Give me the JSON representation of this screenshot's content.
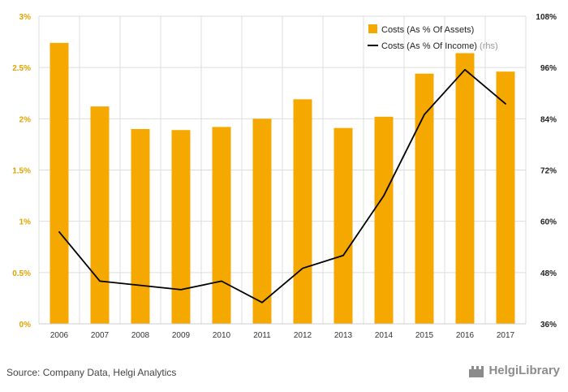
{
  "chart_data": {
    "type": "bar",
    "categories": [
      "2006",
      "2007",
      "2008",
      "2009",
      "2010",
      "2011",
      "2012",
      "2013",
      "2014",
      "2015",
      "2016",
      "2017"
    ],
    "series": [
      {
        "name": "Costs (As % Of Assets)",
        "type": "bar",
        "axis": "left",
        "values": [
          2.74,
          2.12,
          1.9,
          1.89,
          1.92,
          2.0,
          2.19,
          1.91,
          2.02,
          2.44,
          2.64,
          2.46
        ],
        "color": "#f5a800"
      },
      {
        "name": "Costs (As % Of Income)",
        "type": "line",
        "axis": "right",
        "values": [
          57.5,
          46.0,
          45.0,
          44.0,
          46.0,
          41.0,
          49.0,
          52.0,
          66.0,
          85.0,
          95.5,
          87.5
        ],
        "color": "#000000"
      }
    ],
    "left_axis": {
      "ylim": [
        0,
        3
      ],
      "ticks": [
        0,
        0.5,
        1,
        1.5,
        2,
        2.5,
        3
      ],
      "tick_labels": [
        "0%",
        "0.5%",
        "1%",
        "1.5%",
        "2%",
        "2.5%",
        "3%"
      ],
      "color": "#e0a400"
    },
    "right_axis": {
      "ylim": [
        36,
        108
      ],
      "ticks": [
        36,
        48,
        60,
        72,
        84,
        96,
        108
      ],
      "tick_labels": [
        "36%",
        "48%",
        "60%",
        "72%",
        "84%",
        "96%",
        "108%"
      ],
      "color": "#222222"
    },
    "legend": {
      "placement": "top-right",
      "items": [
        {
          "label": "Costs (As % Of Assets)",
          "suffix": "",
          "symbol": "square",
          "color": "#f5a800"
        },
        {
          "label": "Costs (As % Of Income)",
          "suffix": " (rhs)",
          "symbol": "line",
          "color": "#000000"
        }
      ]
    },
    "grid": true
  },
  "footer": {
    "source": "Source: Company Data, Helgi Analytics",
    "logo_text": "HelgiLibrary"
  },
  "colors": {
    "bar": "#f5a800",
    "line": "#000000",
    "grid": "#dddddd",
    "axis": "#cccccc"
  }
}
